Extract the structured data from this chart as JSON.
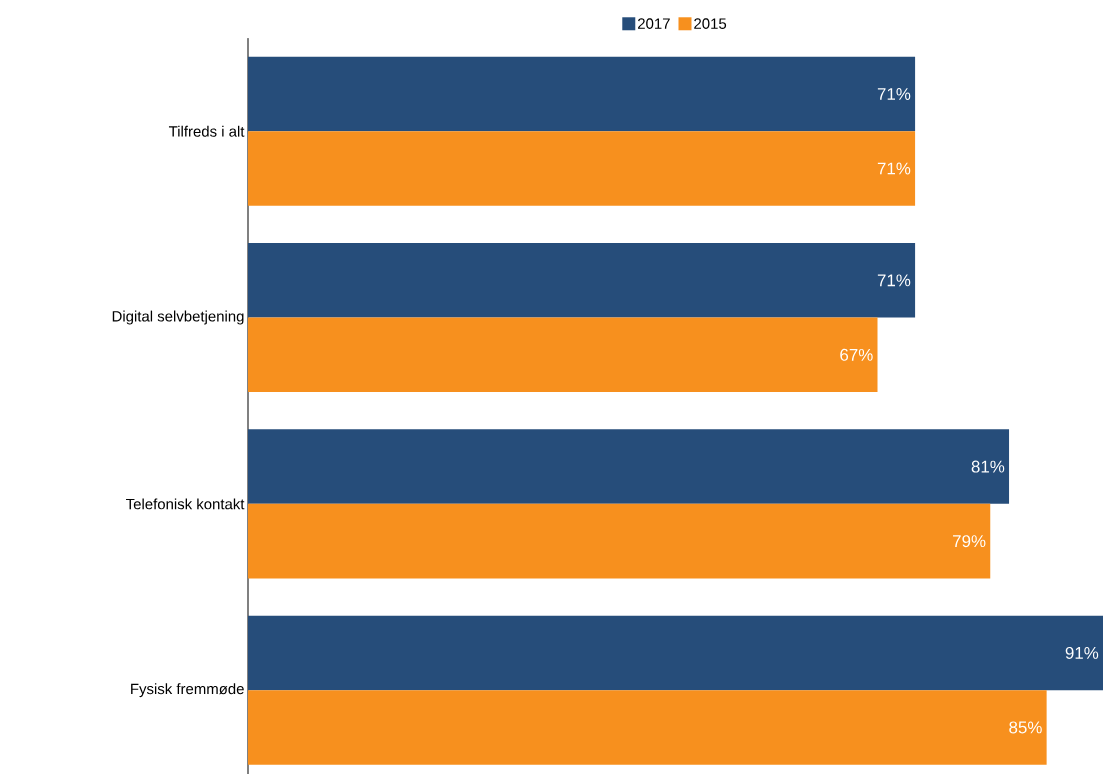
{
  "chart_data": {
    "type": "bar",
    "orientation": "horizontal",
    "categories": [
      "Tilfreds i alt",
      "Digital selvbetjening",
      "Telefonisk kontakt",
      "Fysisk fremmøde"
    ],
    "series": [
      {
        "name": "2017",
        "color": "#264d7a",
        "values": [
          71,
          71,
          81,
          91
        ],
        "value_labels": [
          "71%",
          "71%",
          "81%",
          "91%"
        ]
      },
      {
        "name": "2015",
        "color": "#f7901e",
        "values": [
          71,
          67,
          79,
          85
        ],
        "value_labels": [
          "71%",
          "67%",
          "79%",
          "85%"
        ]
      }
    ],
    "xlim": [
      0,
      91
    ],
    "legend": "top",
    "tick_labels": "y"
  }
}
